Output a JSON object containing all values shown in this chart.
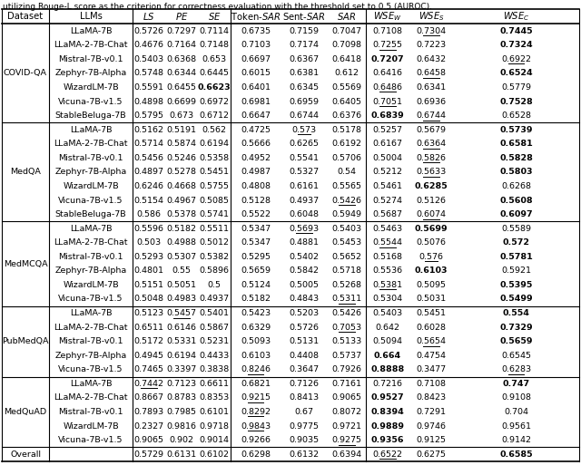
{
  "caption": "utilizing Rouge-L score as the criterion for correctness evaluation with the threshold set to 0.5 (AUROC).",
  "sections": [
    {
      "dataset": "COVID-QA",
      "rows": [
        {
          "llm": "LLaMA-7B",
          "vals": [
            "0.5726",
            "0.7297",
            "0.7114",
            "0.6735",
            "0.7159",
            "0.7047",
            "0.7108",
            "0.7304",
            "0.7445"
          ],
          "bold": [
            0,
            0,
            0,
            0,
            0,
            0,
            0,
            0,
            1
          ],
          "ul": [
            0,
            0,
            0,
            0,
            0,
            0,
            0,
            1,
            0
          ]
        },
        {
          "llm": "LLaMA-2-7B-Chat",
          "vals": [
            "0.4676",
            "0.7164",
            "0.7148",
            "0.7103",
            "0.7174",
            "0.7098",
            "0.7255",
            "0.7223",
            "0.7324"
          ],
          "bold": [
            0,
            0,
            0,
            0,
            0,
            0,
            0,
            0,
            1
          ],
          "ul": [
            0,
            0,
            0,
            0,
            0,
            0,
            1,
            0,
            0
          ]
        },
        {
          "llm": "Mistral-7B-v0.1",
          "vals": [
            "0.5403",
            "0.6368",
            "0.653",
            "0.6697",
            "0.6367",
            "0.6418",
            "0.7207",
            "0.6432",
            "0.6922"
          ],
          "bold": [
            0,
            0,
            0,
            0,
            0,
            0,
            1,
            0,
            0
          ],
          "ul": [
            0,
            0,
            0,
            0,
            0,
            0,
            0,
            0,
            1
          ]
        },
        {
          "llm": "Zephyr-7B-Alpha",
          "vals": [
            "0.5748",
            "0.6344",
            "0.6445",
            "0.6015",
            "0.6381",
            "0.612",
            "0.6416",
            "0.6458",
            "0.6524"
          ],
          "bold": [
            0,
            0,
            0,
            0,
            0,
            0,
            0,
            0,
            1
          ],
          "ul": [
            0,
            0,
            0,
            0,
            0,
            0,
            0,
            1,
            0
          ]
        },
        {
          "llm": "WizardLM-7B",
          "vals": [
            "0.5591",
            "0.6455",
            "0.6623",
            "0.6401",
            "0.6345",
            "0.5569",
            "0.6486",
            "0.6341",
            "0.5779"
          ],
          "bold": [
            0,
            0,
            1,
            0,
            0,
            0,
            0,
            0,
            0
          ],
          "ul": [
            0,
            0,
            0,
            0,
            0,
            0,
            1,
            0,
            0
          ]
        },
        {
          "llm": "Vicuna-7B-v1.5",
          "vals": [
            "0.4898",
            "0.6699",
            "0.6972",
            "0.6981",
            "0.6959",
            "0.6405",
            "0.7051",
            "0.6936",
            "0.7528"
          ],
          "bold": [
            0,
            0,
            0,
            0,
            0,
            0,
            0,
            0,
            1
          ],
          "ul": [
            0,
            0,
            0,
            0,
            0,
            0,
            1,
            0,
            0
          ]
        },
        {
          "llm": "StableBeluga-7B",
          "vals": [
            "0.5795",
            "0.673",
            "0.6712",
            "0.6647",
            "0.6744",
            "0.6376",
            "0.6839",
            "0.6744",
            "0.6528"
          ],
          "bold": [
            0,
            0,
            0,
            0,
            0,
            0,
            1,
            0,
            0
          ],
          "ul": [
            0,
            0,
            0,
            0,
            0,
            0,
            0,
            1,
            0
          ]
        }
      ]
    },
    {
      "dataset": "MedQA",
      "rows": [
        {
          "llm": "LLaMA-7B",
          "vals": [
            "0.5162",
            "0.5191",
            "0.562",
            "0.4725",
            "0.573",
            "0.5178",
            "0.5257",
            "0.5679",
            "0.5739"
          ],
          "bold": [
            0,
            0,
            0,
            0,
            0,
            0,
            0,
            0,
            1
          ],
          "ul": [
            0,
            0,
            0,
            0,
            1,
            0,
            0,
            0,
            0
          ]
        },
        {
          "llm": "LLaMA-2-7B-Chat",
          "vals": [
            "0.5714",
            "0.5874",
            "0.6194",
            "0.5666",
            "0.6265",
            "0.6192",
            "0.6167",
            "0.6364",
            "0.6581"
          ],
          "bold": [
            0,
            0,
            0,
            0,
            0,
            0,
            0,
            0,
            1
          ],
          "ul": [
            0,
            0,
            0,
            0,
            0,
            0,
            0,
            1,
            0
          ]
        },
        {
          "llm": "Mistral-7B-v0.1",
          "vals": [
            "0.5456",
            "0.5246",
            "0.5358",
            "0.4952",
            "0.5541",
            "0.5706",
            "0.5004",
            "0.5826",
            "0.5828"
          ],
          "bold": [
            0,
            0,
            0,
            0,
            0,
            0,
            0,
            0,
            1
          ],
          "ul": [
            0,
            0,
            0,
            0,
            0,
            0,
            0,
            1,
            0
          ]
        },
        {
          "llm": "Zephyr-7B-Alpha",
          "vals": [
            "0.4897",
            "0.5278",
            "0.5451",
            "0.4987",
            "0.5327",
            "0.54",
            "0.5212",
            "0.5633",
            "0.5803"
          ],
          "bold": [
            0,
            0,
            0,
            0,
            0,
            0,
            0,
            0,
            1
          ],
          "ul": [
            0,
            0,
            0,
            0,
            0,
            0,
            0,
            1,
            0
          ]
        },
        {
          "llm": "WizardLM-7B",
          "vals": [
            "0.6246",
            "0.4668",
            "0.5755",
            "0.4808",
            "0.6161",
            "0.5565",
            "0.5461",
            "0.6285",
            "0.6268"
          ],
          "bold": [
            0,
            0,
            0,
            0,
            0,
            0,
            0,
            1,
            0
          ],
          "ul": [
            0,
            0,
            0,
            0,
            0,
            0,
            0,
            0,
            0
          ]
        },
        {
          "llm": "Vicuna-7B-v1.5",
          "vals": [
            "0.5154",
            "0.4967",
            "0.5085",
            "0.5128",
            "0.4937",
            "0.5426",
            "0.5274",
            "0.5126",
            "0.5608"
          ],
          "bold": [
            0,
            0,
            0,
            0,
            0,
            0,
            0,
            0,
            1
          ],
          "ul": [
            0,
            0,
            0,
            0,
            0,
            1,
            0,
            0,
            0
          ]
        },
        {
          "llm": "StableBeluga-7B",
          "vals": [
            "0.586",
            "0.5378",
            "0.5741",
            "0.5522",
            "0.6048",
            "0.5949",
            "0.5687",
            "0.6074",
            "0.6097"
          ],
          "bold": [
            0,
            0,
            0,
            0,
            0,
            0,
            0,
            0,
            1
          ],
          "ul": [
            0,
            0,
            0,
            0,
            0,
            0,
            0,
            1,
            0
          ]
        }
      ]
    },
    {
      "dataset": "MedMCQA",
      "rows": [
        {
          "llm": "LLaMA-7B",
          "vals": [
            "0.5596",
            "0.5182",
            "0.5511",
            "0.5347",
            "0.5693",
            "0.5403",
            "0.5463",
            "0.5699",
            "0.5589"
          ],
          "bold": [
            0,
            0,
            0,
            0,
            0,
            0,
            0,
            1,
            0
          ],
          "ul": [
            0,
            0,
            0,
            0,
            1,
            0,
            0,
            0,
            0
          ]
        },
        {
          "llm": "LLaMA-2-7B-Chat",
          "vals": [
            "0.503",
            "0.4988",
            "0.5012",
            "0.5347",
            "0.4881",
            "0.5453",
            "0.5544",
            "0.5076",
            "0.572"
          ],
          "bold": [
            0,
            0,
            0,
            0,
            0,
            0,
            0,
            0,
            1
          ],
          "ul": [
            0,
            0,
            0,
            0,
            0,
            0,
            1,
            0,
            0
          ]
        },
        {
          "llm": "Mistral-7B-v0.1",
          "vals": [
            "0.5293",
            "0.5307",
            "0.5382",
            "0.5295",
            "0.5402",
            "0.5652",
            "0.5168",
            "0.576",
            "0.5781"
          ],
          "bold": [
            0,
            0,
            0,
            0,
            0,
            0,
            0,
            0,
            1
          ],
          "ul": [
            0,
            0,
            0,
            0,
            0,
            0,
            0,
            1,
            0
          ]
        },
        {
          "llm": "Zephyr-7B-Alpha",
          "vals": [
            "0.4801",
            "0.55",
            "0.5896",
            "0.5659",
            "0.5842",
            "0.5718",
            "0.5536",
            "0.6103",
            "0.5921"
          ],
          "bold": [
            0,
            0,
            0,
            0,
            0,
            0,
            0,
            1,
            0
          ],
          "ul": [
            0,
            0,
            0,
            0,
            0,
            0,
            0,
            0,
            0
          ]
        },
        {
          "llm": "WizardLM-7B",
          "vals": [
            "0.5151",
            "0.5051",
            "0.5",
            "0.5124",
            "0.5005",
            "0.5268",
            "0.5381",
            "0.5095",
            "0.5395"
          ],
          "bold": [
            0,
            0,
            0,
            0,
            0,
            0,
            0,
            0,
            1
          ],
          "ul": [
            0,
            0,
            0,
            0,
            0,
            0,
            1,
            0,
            0
          ]
        },
        {
          "llm": "Vicuna-7B-v1.5",
          "vals": [
            "0.5048",
            "0.4983",
            "0.4937",
            "0.5182",
            "0.4843",
            "0.5311",
            "0.5304",
            "0.5031",
            "0.5499"
          ],
          "bold": [
            0,
            0,
            0,
            0,
            0,
            0,
            0,
            0,
            1
          ],
          "ul": [
            0,
            0,
            0,
            0,
            0,
            1,
            0,
            0,
            0
          ]
        }
      ]
    },
    {
      "dataset": "PubMedQA",
      "rows": [
        {
          "llm": "LLaMA-7B",
          "vals": [
            "0.5123",
            "0.5457",
            "0.5401",
            "0.5423",
            "0.5203",
            "0.5426",
            "0.5403",
            "0.5451",
            "0.554"
          ],
          "bold": [
            0,
            0,
            0,
            0,
            0,
            0,
            0,
            0,
            1
          ],
          "ul": [
            0,
            1,
            0,
            0,
            0,
            0,
            0,
            0,
            0
          ]
        },
        {
          "llm": "LLaMA-2-7B-Chat",
          "vals": [
            "0.6511",
            "0.6146",
            "0.5867",
            "0.6329",
            "0.5726",
            "0.7053",
            "0.642",
            "0.6028",
            "0.7329"
          ],
          "bold": [
            0,
            0,
            0,
            0,
            0,
            0,
            0,
            0,
            1
          ],
          "ul": [
            0,
            0,
            0,
            0,
            0,
            1,
            0,
            0,
            0
          ]
        },
        {
          "llm": "Mistral-7B-v0.1",
          "vals": [
            "0.5172",
            "0.5331",
            "0.5231",
            "0.5093",
            "0.5131",
            "0.5133",
            "0.5094",
            "0.5654",
            "0.5659"
          ],
          "bold": [
            0,
            0,
            0,
            0,
            0,
            0,
            0,
            0,
            1
          ],
          "ul": [
            0,
            0,
            0,
            0,
            0,
            0,
            0,
            1,
            0
          ]
        },
        {
          "llm": "Zephyr-7B-Alpha",
          "vals": [
            "0.4945",
            "0.6194",
            "0.4433",
            "0.6103",
            "0.4408",
            "0.5737",
            "0.664",
            "0.4754",
            "0.6545"
          ],
          "bold": [
            0,
            0,
            0,
            0,
            0,
            0,
            1,
            0,
            0
          ],
          "ul": [
            0,
            0,
            0,
            0,
            0,
            0,
            0,
            0,
            0
          ]
        },
        {
          "llm": "Vicuna-7B-v1.5",
          "vals": [
            "0.7465",
            "0.3397",
            "0.3838",
            "0.8246",
            "0.3647",
            "0.7926",
            "0.8888",
            "0.3477",
            "0.6283"
          ],
          "bold": [
            0,
            0,
            0,
            0,
            0,
            0,
            1,
            0,
            0
          ],
          "ul": [
            0,
            0,
            0,
            1,
            0,
            0,
            0,
            0,
            1
          ]
        }
      ]
    },
    {
      "dataset": "MedQuAD",
      "rows": [
        {
          "llm": "LLaMA-7B",
          "vals": [
            "0.7442",
            "0.7123",
            "0.6611",
            "0.6821",
            "0.7126",
            "0.7161",
            "0.7216",
            "0.7108",
            "0.747"
          ],
          "bold": [
            0,
            0,
            0,
            0,
            0,
            0,
            0,
            0,
            1
          ],
          "ul": [
            1,
            0,
            0,
            0,
            0,
            0,
            0,
            0,
            0
          ]
        },
        {
          "llm": "LLaMA-2-7B-Chat",
          "vals": [
            "0.8667",
            "0.8783",
            "0.8353",
            "0.9215",
            "0.8413",
            "0.9065",
            "0.9527",
            "0.8423",
            "0.9108"
          ],
          "bold": [
            0,
            0,
            0,
            0,
            0,
            0,
            1,
            0,
            0
          ],
          "ul": [
            0,
            0,
            0,
            1,
            0,
            0,
            0,
            0,
            0
          ]
        },
        {
          "llm": "Mistral-7B-v0.1",
          "vals": [
            "0.7893",
            "0.7985",
            "0.6101",
            "0.8292",
            "0.67",
            "0.8072",
            "0.8394",
            "0.7291",
            "0.704"
          ],
          "bold": [
            0,
            0,
            0,
            0,
            0,
            0,
            1,
            0,
            0
          ],
          "ul": [
            0,
            0,
            0,
            1,
            0,
            0,
            0,
            0,
            0
          ]
        },
        {
          "llm": "WizardLM-7B",
          "vals": [
            "0.2327",
            "0.9816",
            "0.9718",
            "0.9843",
            "0.9775",
            "0.9721",
            "0.9889",
            "0.9746",
            "0.9561"
          ],
          "bold": [
            0,
            0,
            0,
            0,
            0,
            0,
            1,
            0,
            0
          ],
          "ul": [
            0,
            0,
            0,
            1,
            0,
            0,
            0,
            0,
            0
          ]
        },
        {
          "llm": "Vicuna-7B-v1.5",
          "vals": [
            "0.9065",
            "0.902",
            "0.9014",
            "0.9266",
            "0.9035",
            "0.9275",
            "0.9356",
            "0.9125",
            "0.9142"
          ],
          "bold": [
            0,
            0,
            0,
            0,
            0,
            0,
            1,
            0,
            0
          ],
          "ul": [
            0,
            0,
            0,
            0,
            0,
            1,
            0,
            0,
            0
          ]
        }
      ]
    }
  ],
  "overall": {
    "vals": [
      "0.5729",
      "0.6131",
      "0.6102",
      "0.6298",
      "0.6132",
      "0.6394",
      "0.6522",
      "0.6275",
      "0.6585"
    ],
    "bold": [
      0,
      0,
      0,
      0,
      0,
      0,
      0,
      0,
      1
    ],
    "ul": [
      0,
      0,
      0,
      0,
      0,
      0,
      1,
      0,
      0
    ]
  },
  "font_size": 6.8,
  "header_font_size": 7.2,
  "caption_font_size": 6.5
}
